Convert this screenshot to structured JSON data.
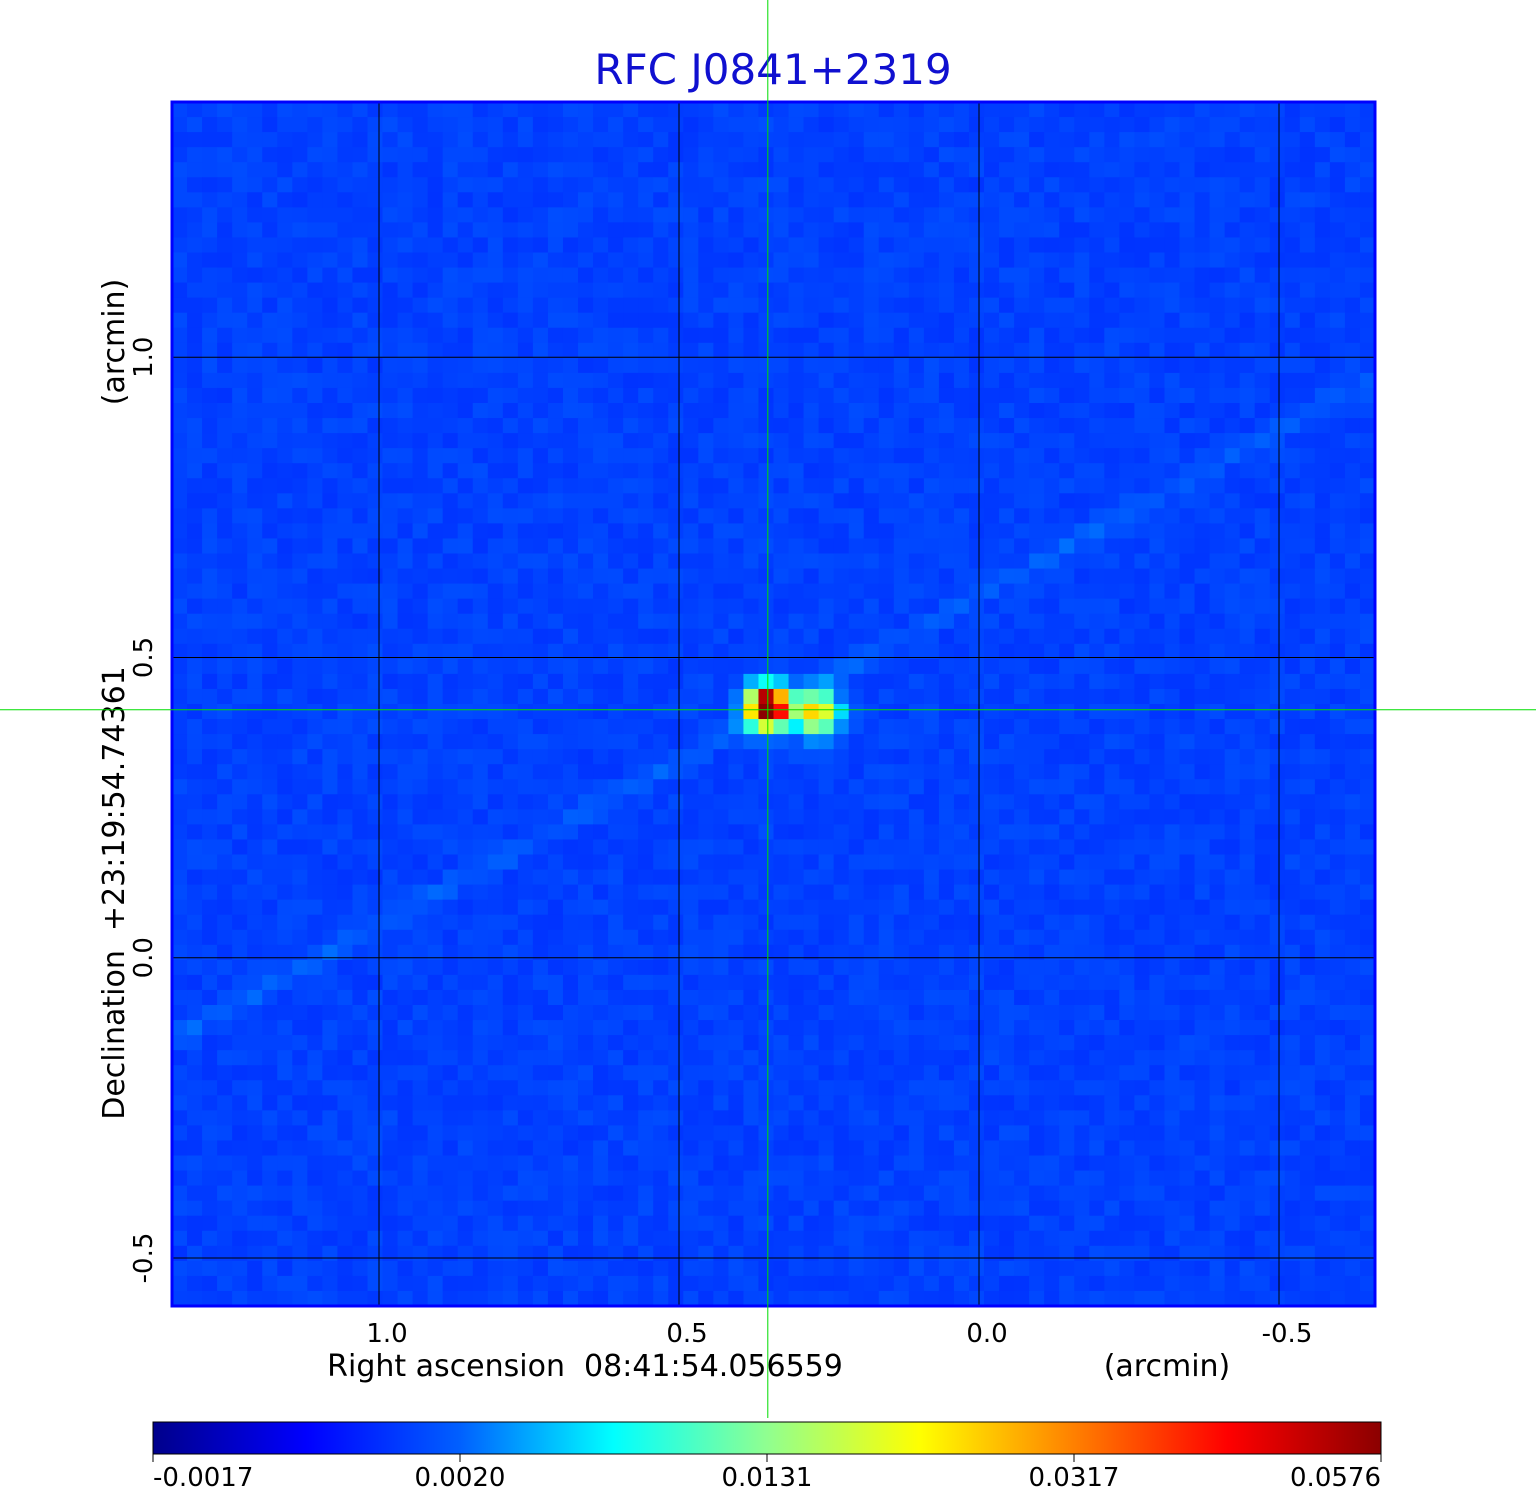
{
  "chart_data": {
    "type": "heatmap",
    "title": "RFC J0841+2319",
    "xlabel": "Right ascension  08:41:54.056559",
    "xunit": "(arcmin)",
    "ylabel": "Declination  +23:19:54.74361",
    "yunit": "(arcmin)",
    "xlim": [
      1.345,
      -0.66
    ],
    "ylim": [
      -0.58,
      1.425
    ],
    "x_ticks": [
      1.0,
      0.5,
      0.0,
      -0.5
    ],
    "x_tick_labels": [
      "1.0",
      "0.5",
      "0.0",
      "-0.5"
    ],
    "y_ticks": [
      1.0,
      0.5,
      0.0,
      -0.5
    ],
    "y_tick_labels": [
      "1.0",
      "0.5",
      "0.0",
      "-0.5"
    ],
    "grid": true,
    "crosshair": {
      "x": 0.352,
      "y": 0.413,
      "color": "#00dd00"
    },
    "colorbar": {
      "tick_labels": [
        "-0.0017",
        "0.0020",
        "0.0131",
        "0.0317",
        "0.0576"
      ],
      "colors": [
        "#00008b",
        "#0000ff",
        "#0060ff",
        "#00ffff",
        "#90ff90",
        "#ffff00",
        "#ff8000",
        "#ff0000",
        "#8b0000"
      ]
    },
    "sources": [
      {
        "x": 0.352,
        "y": 0.417,
        "peak": 0.0576
      },
      {
        "x": 0.27,
        "y": 0.408,
        "peak": 0.0317
      }
    ],
    "background_level": 0.0
  }
}
